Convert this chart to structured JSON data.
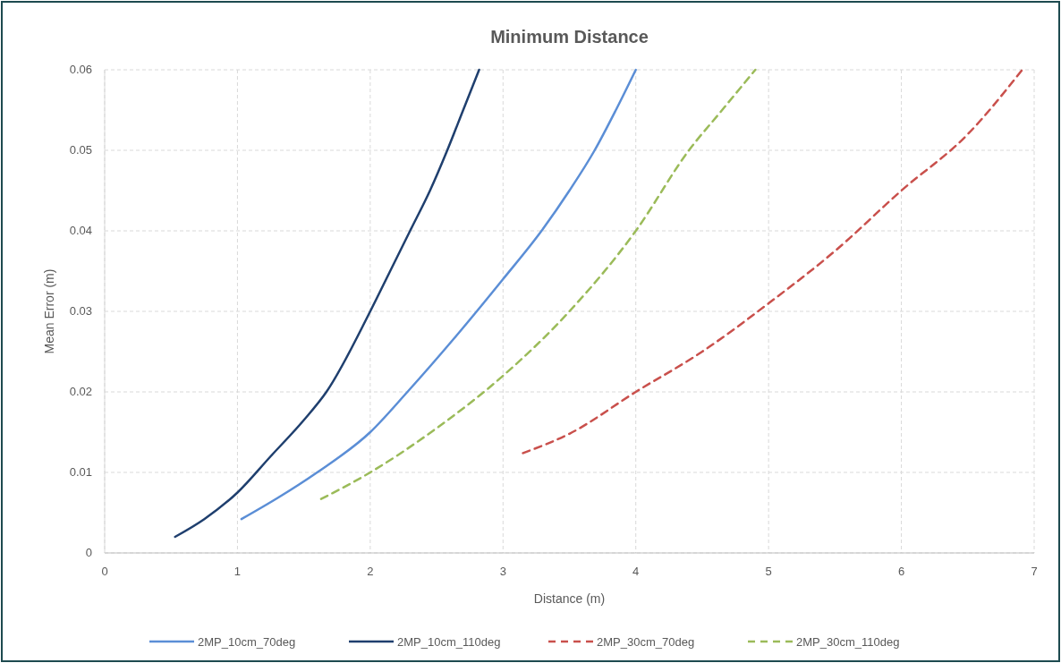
{
  "chart_data": {
    "type": "line",
    "title": "Minimum Distance",
    "xlabel": "Distance (m)",
    "ylabel": "Mean Error (m)",
    "xlim": [
      0,
      7
    ],
    "xticks": [
      0,
      1,
      2,
      3,
      4,
      5,
      6,
      7
    ],
    "ylim": [
      0,
      0.06
    ],
    "yticks": [
      0,
      0.01,
      0.02,
      0.03,
      0.04,
      0.05,
      0.06
    ],
    "grid": true,
    "legend": "bottom",
    "marker": "none",
    "series": [
      {
        "name": "2MP_10cm_70deg",
        "color": "#5b8ed6",
        "line_style": "solid",
        "x": [
          1.03,
          1.3,
          1.6,
          2,
          2.28,
          2.65,
          3,
          3.29,
          3.5,
          3.69,
          3.85,
          4.0
        ],
        "values": [
          0.0042,
          0.0068,
          0.01,
          0.015,
          0.02,
          0.027,
          0.034,
          0.04,
          0.045,
          0.05,
          0.055,
          0.06
        ]
      },
      {
        "name": "2MP_10cm_110deg",
        "color": "#1f3f6e",
        "line_style": "solid",
        "x": [
          0.53,
          0.75,
          1,
          1.25,
          1.5,
          1.67,
          2,
          2.15,
          2.3,
          2.45,
          2.58,
          2.7,
          2.82
        ],
        "values": [
          0.002,
          0.0042,
          0.0075,
          0.012,
          0.0165,
          0.02,
          0.03,
          0.035,
          0.04,
          0.045,
          0.05,
          0.055,
          0.06
        ]
      },
      {
        "name": "2MP_30cm_70deg",
        "color": "#c9504c",
        "line_style": "dashed",
        "x": [
          3.15,
          3.5,
          4,
          4.5,
          5,
          5.5,
          6,
          6.5,
          6.91
        ],
        "values": [
          0.0124,
          0.0148,
          0.02,
          0.025,
          0.031,
          0.0375,
          0.045,
          0.052,
          0.06
        ]
      },
      {
        "name": "2MP_30cm_110deg",
        "color": "#9bbb59",
        "line_style": "dashed",
        "x": [
          1.63,
          2,
          2.5,
          3,
          3.5,
          4,
          4.4,
          4.65,
          4.9
        ],
        "values": [
          0.0067,
          0.01,
          0.0155,
          0.022,
          0.03,
          0.04,
          0.05,
          0.055,
          0.06
        ]
      }
    ]
  }
}
